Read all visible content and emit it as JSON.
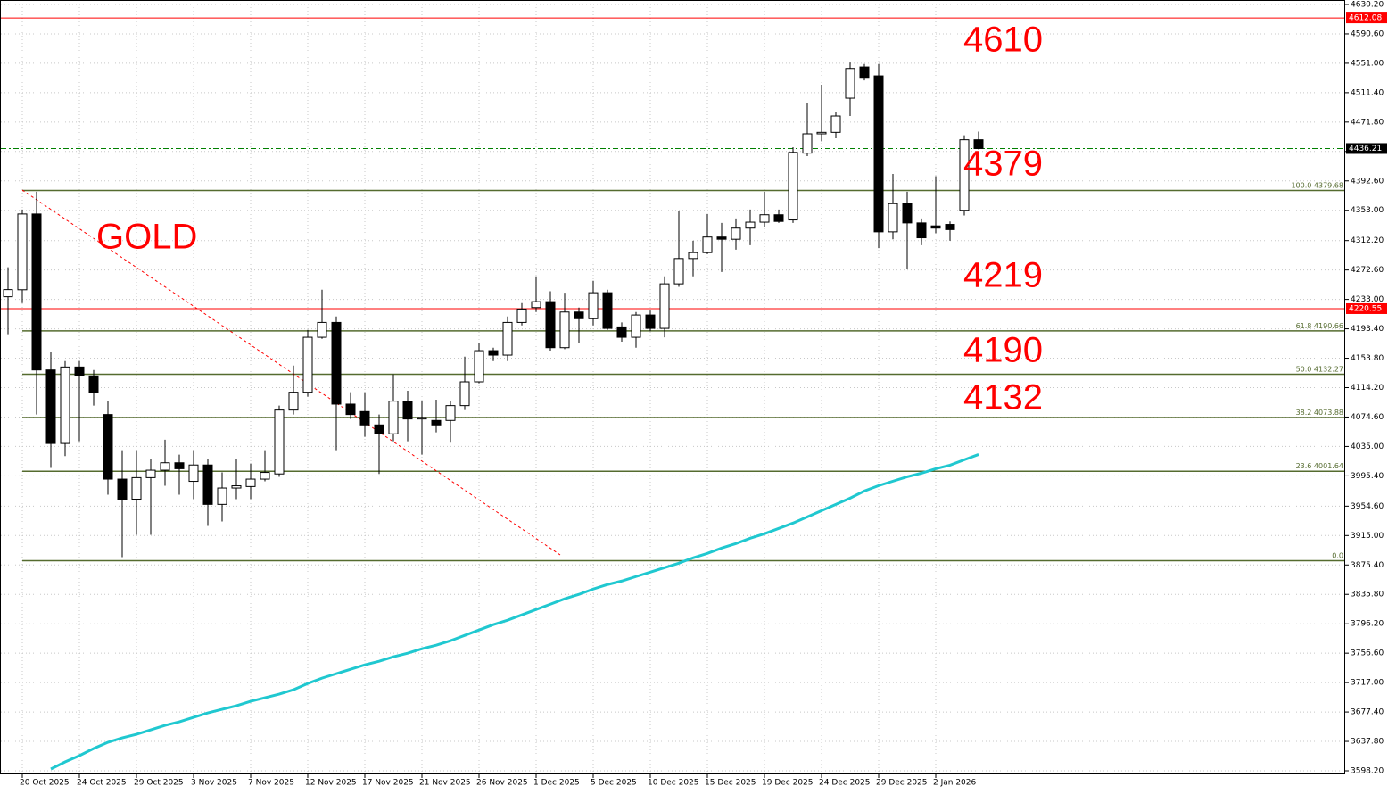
{
  "chart_data": {
    "type": "candlestick",
    "categories": [
      null,
      "20 Oct 2025",
      null,
      null,
      null,
      "24 Oct 2025",
      null,
      null,
      null,
      "29 Oct 2025",
      null,
      null,
      null,
      "3 Nov 2025",
      null,
      null,
      null,
      "7 Nov 2025",
      null,
      null,
      null,
      "12 Nov 2025",
      null,
      null,
      null,
      "17 Nov 2025",
      null,
      null,
      null,
      "21 Nov 2025",
      null,
      null,
      null,
      "26 Nov 2025",
      null,
      null,
      null,
      "1 Dec 2025",
      null,
      null,
      null,
      "5 Dec 2025",
      null,
      null,
      null,
      "10 Dec 2025",
      null,
      null,
      null,
      "15 Dec 2025",
      null,
      null,
      null,
      "19 Dec 2025",
      null,
      null,
      null,
      "24 Dec 2025",
      null,
      null,
      null,
      "29 Dec 2025",
      null,
      null,
      null,
      "2 Jan 2026",
      null,
      null,
      null
    ],
    "open": [
      4236.6,
      4246,
      4348,
      4138,
      4039,
      4142,
      4130,
      4078,
      3991,
      3964,
      3993,
      4003,
      4013,
      3988,
      4010,
      3957,
      3979,
      3981,
      3991,
      3998,
      4084,
      4108,
      4182,
      4202,
      4092,
      4082,
      4064,
      4052,
      4096,
      4072,
      4070,
      4070,
      4090,
      4122,
      4164,
      4158,
      4202,
      4222,
      4230,
      4168,
      4216,
      4207,
      4242,
      4196,
      4182,
      4212,
      4194,
      4254,
      4288,
      4296,
      4317,
      4314,
      4329,
      4337,
      4347,
      4340,
      4430,
      4456,
      4458,
      4504,
      4546,
      4534,
      4324,
      4362,
      4336,
      4332,
      4334,
      4353,
      4448
    ],
    "high": [
      4276.2,
      4354,
      4378,
      4162,
      4150,
      4150,
      4138,
      4096,
      4030,
      4030,
      4018,
      4044,
      4024,
      4030,
      4018,
      4000,
      4018,
      4012,
      4030,
      4090,
      4144,
      4192,
      4246,
      4210,
      4108,
      4108,
      4078,
      4132,
      4110,
      4096,
      4098,
      4096,
      4156,
      4174,
      4168,
      4210,
      4228,
      4264,
      4244,
      4242,
      4222,
      4258,
      4246,
      4202,
      4216,
      4218,
      4264,
      4352,
      4312,
      4348,
      4336,
      4342,
      4354,
      4378,
      4354,
      4438,
      4498,
      4522,
      4486,
      4552,
      4550,
      4550,
      4402,
      4378,
      4342,
      4399,
      4338,
      4454,
      4459
    ],
    "low": [
      4186.2,
      4228,
      4078,
      4006,
      4022,
      4042,
      4090,
      3970,
      3886,
      3916,
      3916,
      3982,
      3970,
      3964,
      3928,
      3934,
      3964,
      3964,
      3988,
      3994,
      4078,
      4102,
      4180,
      4030,
      4072,
      4048,
      3998,
      4042,
      4042,
      4024,
      4054,
      4040,
      4084,
      4120,
      4150,
      4150,
      4198,
      4216,
      4164,
      4166,
      4174,
      4198,
      4192,
      4176,
      4168,
      4190,
      4182,
      4250,
      4264,
      4294,
      4270,
      4300,
      4306,
      4330,
      4336,
      4336,
      4426,
      4446,
      4450,
      4480,
      4528,
      4302,
      4314,
      4274,
      4306,
      4322,
      4312,
      4346,
      4435
    ],
    "close": [
      4246.2,
      4348,
      4138,
      4039,
      4142,
      4130,
      4108,
      3991,
      3964,
      3993,
      4003,
      4013,
      4005,
      4010,
      3957,
      3979,
      3982,
      3991,
      4000,
      4084,
      4108,
      4182,
      4202,
      4092,
      4078,
      4064,
      4052,
      4096,
      4072,
      4074,
      4064,
      4090,
      4122,
      4164,
      4158,
      4202,
      4220,
      4230,
      4168,
      4216,
      4207,
      4242,
      4194,
      4182,
      4212,
      4194,
      4254,
      4288,
      4296,
      4317,
      4314,
      4329,
      4337,
      4347,
      4338,
      4431,
      4456,
      4458,
      4480,
      4544,
      4532,
      4324,
      4362,
      4336,
      4316,
      4329,
      4327,
      4448,
      4436.21
    ],
    "up_color": "#ffffff",
    "down_color": "#000000",
    "series": [
      {
        "color": "#20c8d0",
        "values": [
          null,
          null,
          null,
          3600.6,
          3610.2,
          3618.6,
          3628.2,
          3636.6,
          3642.6,
          3647.4,
          3653.4,
          3659.4,
          3664.2,
          3670.2,
          3676.2,
          3681.0,
          3685.8,
          3691.8,
          3696.6,
          3701.4,
          3707.4,
          3715.8,
          3723.0,
          3729.0,
          3735.0,
          3741.0,
          3745.8,
          3751.8,
          3756.6,
          3762.6,
          3767.4,
          3773.4,
          3780.6,
          3787.8,
          3795.0,
          3801.0,
          3808.2,
          3815.4,
          3822.6,
          3829.8,
          3835.8,
          3843.0,
          3849.0,
          3853.8,
          3859.8,
          3865.8,
          3871.8,
          3877.8,
          3885.0,
          3891.0,
          3898.2,
          3904.2,
          3911.4,
          3917.4,
          3924.6,
          3931.8,
          3940.2,
          3948.6,
          3957.0,
          3965.4,
          3975.0,
          3982.2,
          3988.2,
          3994.2,
          3999.0,
          4005.0,
          4009.8,
          4017.0,
          4024.2
        ]
      }
    ],
    "ylim": [
      3593.4,
      4636.2
    ],
    "yticks": [
      {
        "value": 4630.2,
        "label": "4630.20"
      },
      {
        "value": 4590.6,
        "label": "4590.60"
      },
      {
        "value": 4551,
        "label": "4551.00"
      },
      {
        "value": 4511.4,
        "label": "4511.40"
      },
      {
        "value": 4471.8,
        "label": "4471.80"
      },
      {
        "value": 4432.2,
        "label": "4432.20"
      },
      {
        "value": 4392.6,
        "label": "4392.60"
      },
      {
        "value": 4353,
        "label": "4353.00"
      },
      {
        "value": 4312.2,
        "label": "4312.20"
      },
      {
        "value": 4272.6,
        "label": "4272.60"
      },
      {
        "value": 4233,
        "label": "4233.00"
      },
      {
        "value": 4193.4,
        "label": "4193.40"
      },
      {
        "value": 4153.8,
        "label": "4153.80"
      },
      {
        "value": 4114.2,
        "label": "4114.20"
      },
      {
        "value": 4074.6,
        "label": "4074.60"
      },
      {
        "value": 4035,
        "label": "4035.00"
      },
      {
        "value": 3995.4,
        "label": "3995.40"
      },
      {
        "value": 3954.6,
        "label": "3954.60"
      },
      {
        "value": 3915,
        "label": "3915.00"
      },
      {
        "value": 3875.4,
        "label": "3875.40"
      },
      {
        "value": 3835.8,
        "label": "3835.80"
      },
      {
        "value": 3796.2,
        "label": "3796.20"
      },
      {
        "value": 3756.6,
        "label": "3756.60"
      },
      {
        "value": 3717,
        "label": "3717.00"
      },
      {
        "value": 3677.4,
        "label": "3677.40"
      },
      {
        "value": 3637.8,
        "label": "3637.80"
      },
      {
        "value": 3598.2,
        "label": "3598.20"
      }
    ],
    "grid": true,
    "price_lines": [
      {
        "value": 4612.08,
        "label": "4612.08",
        "color": "#ff0000"
      },
      {
        "value": 4220.55,
        "label": "4220.55",
        "color": "#ff0000"
      },
      {
        "value": 4436.21,
        "label": "4436.21",
        "color": "#000000"
      }
    ],
    "fib_levels": [
      {
        "value": 4379.68,
        "label": "100.0 4379.68"
      },
      {
        "value": 4190.66,
        "label": "61.8 4190.66"
      },
      {
        "value": 4132.27,
        "label": "50.0 4132.27"
      },
      {
        "value": 4073.88,
        "label": "38.2 4073.88"
      },
      {
        "value": 4001.64,
        "label": "23.6 4001.64"
      },
      {
        "value": 3881.2,
        "label": "0.0"
      }
    ],
    "fib_color": "#556b2f",
    "annotations": [
      "GOLD",
      "4610",
      "4379",
      "4219",
      "4190",
      "4132"
    ]
  }
}
